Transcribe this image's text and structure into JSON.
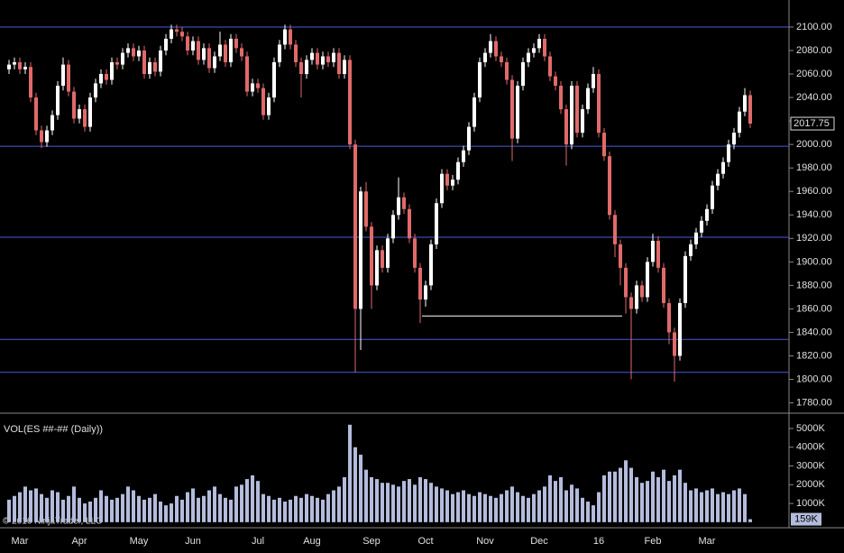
{
  "footer": "© 2016 NinjaTrader, LLC",
  "chart_data": [
    {
      "type": "candlestick",
      "categories": [
        null,
        null,
        "Mar",
        null,
        null,
        null,
        null,
        null,
        null,
        null,
        null,
        null,
        null,
        "Apr",
        null,
        null,
        null,
        null,
        null,
        null,
        null,
        null,
        null,
        null,
        "May",
        null,
        null,
        null,
        null,
        null,
        null,
        null,
        null,
        null,
        "Jun",
        null,
        null,
        null,
        null,
        null,
        null,
        null,
        null,
        null,
        null,
        null,
        "Jul",
        null,
        null,
        null,
        null,
        null,
        null,
        null,
        null,
        null,
        "Aug",
        null,
        null,
        null,
        null,
        null,
        null,
        null,
        null,
        null,
        null,
        "Sep",
        null,
        null,
        null,
        null,
        null,
        null,
        null,
        null,
        null,
        "Oct",
        null,
        null,
        null,
        null,
        null,
        null,
        null,
        null,
        null,
        null,
        "Nov",
        null,
        null,
        null,
        null,
        null,
        null,
        null,
        null,
        null,
        "Dec",
        null,
        null,
        null,
        null,
        null,
        null,
        null,
        null,
        null,
        null,
        "16",
        null,
        null,
        null,
        null,
        null,
        null,
        null,
        null,
        null,
        "Feb",
        null,
        null,
        null,
        null,
        null,
        null,
        null,
        null,
        null,
        "Mar",
        null,
        null,
        null,
        null,
        null,
        null,
        null,
        null
      ],
      "open": [
        2064,
        2068,
        2070,
        2064,
        2066,
        2040,
        2012,
        2002,
        2012,
        2025,
        2050,
        2068,
        2045,
        2022,
        2030,
        2015,
        2040,
        2052,
        2060,
        2055,
        2070,
        2068,
        2078,
        2082,
        2075,
        2080,
        2060,
        2070,
        2062,
        2080,
        2090,
        2098,
        2096,
        2092,
        2080,
        2088,
        2072,
        2082,
        2065,
        2075,
        2085,
        2070,
        2090,
        2082,
        2075,
        2045,
        2052,
        2048,
        2025,
        2040,
        2070,
        2085,
        2098,
        2085,
        2070,
        2060,
        2072,
        2078,
        2068,
        2075,
        2070,
        2078,
        2060,
        2072,
        2000,
        1860,
        1960,
        1930,
        1880,
        1910,
        1895,
        1920,
        1940,
        1955,
        1945,
        1920,
        1895,
        1868,
        1880,
        1915,
        1950,
        1975,
        1965,
        1970,
        1985,
        1995,
        2015,
        2040,
        2070,
        2078,
        2088,
        2075,
        2070,
        2055,
        2005,
        2050,
        2070,
        2078,
        2082,
        2090,
        2075,
        2058,
        2050,
        2030,
        2000,
        2050,
        2010,
        2030,
        2048,
        2060,
        2010,
        1990,
        1940,
        1915,
        1895,
        1870,
        1860,
        1880,
        1870,
        1900,
        1918,
        1895,
        1865,
        1840,
        1820,
        1865,
        1905,
        1915,
        1925,
        1935,
        1945,
        1965,
        1975,
        1985,
        2000,
        2010,
        2028,
        2042
      ],
      "high": [
        2072,
        2074,
        2074,
        2070,
        2070,
        2044,
        2016,
        2016,
        2029,
        2054,
        2074,
        2072,
        2049,
        2034,
        2034,
        2044,
        2056,
        2064,
        2064,
        2074,
        2074,
        2082,
        2086,
        2086,
        2084,
        2084,
        2074,
        2074,
        2084,
        2094,
        2102,
        2102,
        2100,
        2096,
        2092,
        2092,
        2086,
        2086,
        2079,
        2096,
        2089,
        2094,
        2094,
        2086,
        2079,
        2056,
        2056,
        2052,
        2044,
        2074,
        2089,
        2102,
        2102,
        2089,
        2074,
        2076,
        2082,
        2082,
        2079,
        2079,
        2082,
        2082,
        2076,
        2076,
        2004,
        1964,
        1968,
        1934,
        1914,
        1914,
        1924,
        1944,
        1972,
        1959,
        1949,
        1924,
        1899,
        1884,
        1919,
        1954,
        1979,
        1979,
        1974,
        1989,
        1999,
        2019,
        2044,
        2074,
        2082,
        2094,
        2092,
        2079,
        2074,
        2059,
        2054,
        2074,
        2082,
        2086,
        2094,
        2094,
        2079,
        2062,
        2054,
        2034,
        2054,
        2054,
        2034,
        2052,
        2066,
        2064,
        2014,
        1994,
        1944,
        1919,
        1899,
        1874,
        1884,
        1884,
        1904,
        1924,
        1922,
        1899,
        1869,
        1844,
        1869,
        1909,
        1919,
        1929,
        1939,
        1949,
        1969,
        1979,
        1989,
        2004,
        2014,
        2032,
        2048,
        2046
      ],
      "low": [
        2060,
        2064,
        2060,
        2060,
        2036,
        2008,
        1997,
        1998,
        2008,
        2021,
        2046,
        2041,
        2018,
        2018,
        2011,
        2011,
        2036,
        2048,
        2051,
        2051,
        2064,
        2064,
        2074,
        2071,
        2071,
        2056,
        2056,
        2058,
        2058,
        2076,
        2086,
        2092,
        2088,
        2076,
        2076,
        2068,
        2068,
        2061,
        2061,
        2071,
        2066,
        2066,
        2078,
        2071,
        2041,
        2041,
        2044,
        2021,
        2021,
        2036,
        2066,
        2081,
        2081,
        2066,
        2040,
        2056,
        2068,
        2064,
        2064,
        2066,
        2066,
        2056,
        2056,
        1996,
        1806,
        1825,
        1926,
        1860,
        1876,
        1891,
        1891,
        1916,
        1936,
        1941,
        1916,
        1891,
        1848,
        1862,
        1876,
        1911,
        1946,
        1961,
        1961,
        1966,
        1981,
        1991,
        2011,
        2036,
        2066,
        2074,
        2071,
        2066,
        2051,
        1986,
        2001,
        2046,
        2066,
        2074,
        2078,
        2071,
        2054,
        2046,
        2026,
        1982,
        1996,
        2006,
        2006,
        2026,
        2044,
        2006,
        1986,
        1936,
        1904,
        1880,
        1856,
        1800,
        1856,
        1866,
        1866,
        1896,
        1891,
        1861,
        1830,
        1798,
        1816,
        1861,
        1901,
        1911,
        1921,
        1931,
        1941,
        1961,
        1971,
        1981,
        1996,
        2006,
        2024,
        2014
      ],
      "close": [
        2068,
        2070,
        2064,
        2066,
        2040,
        2012,
        2002,
        2012,
        2025,
        2050,
        2068,
        2045,
        2022,
        2030,
        2015,
        2040,
        2052,
        2060,
        2055,
        2070,
        2068,
        2078,
        2082,
        2075,
        2080,
        2060,
        2070,
        2062,
        2080,
        2090,
        2098,
        2096,
        2092,
        2080,
        2088,
        2072,
        2082,
        2065,
        2075,
        2085,
        2070,
        2090,
        2082,
        2075,
        2045,
        2052,
        2048,
        2025,
        2040,
        2070,
        2085,
        2098,
        2085,
        2070,
        2060,
        2072,
        2078,
        2068,
        2075,
        2070,
        2078,
        2060,
        2072,
        2000,
        1860,
        1960,
        1930,
        1880,
        1910,
        1895,
        1920,
        1940,
        1955,
        1945,
        1920,
        1895,
        1868,
        1880,
        1915,
        1950,
        1975,
        1965,
        1970,
        1985,
        1995,
        2015,
        2040,
        2070,
        2078,
        2088,
        2075,
        2070,
        2055,
        2005,
        2050,
        2070,
        2078,
        2082,
        2090,
        2075,
        2058,
        2050,
        2030,
        2000,
        2050,
        2010,
        2030,
        2048,
        2060,
        2010,
        1990,
        1940,
        1915,
        1895,
        1870,
        1860,
        1880,
        1870,
        1900,
        1918,
        1895,
        1865,
        1840,
        1820,
        1865,
        1905,
        1915,
        1925,
        1935,
        1945,
        1965,
        1975,
        1985,
        2000,
        2010,
        2028,
        2042,
        2017.75
      ],
      "up_color": "#ffffff",
      "down_color": "#e06a6a",
      "ylim": [
        1772,
        2123
      ],
      "yticks": [
        {
          "value": 1780,
          "label": "1780.00"
        },
        {
          "value": 1800,
          "label": "1800.00"
        },
        {
          "value": 1820,
          "label": "1820.00"
        },
        {
          "value": 1840,
          "label": "1840.00"
        },
        {
          "value": 1860,
          "label": "1860.00"
        },
        {
          "value": 1880,
          "label": "1880.00"
        },
        {
          "value": 1900,
          "label": "1900.00"
        },
        {
          "value": 1920,
          "label": "1920.00"
        },
        {
          "value": 1940,
          "label": "1940.00"
        },
        {
          "value": 1960,
          "label": "1960.00"
        },
        {
          "value": 1980,
          "label": "1980.00"
        },
        {
          "value": 2000,
          "label": "2000.00"
        },
        {
          "value": 2020,
          "label": "2020.00"
        },
        {
          "value": 2040,
          "label": "2040.00"
        },
        {
          "value": 2060,
          "label": "2060.00"
        },
        {
          "value": 2080,
          "label": "2080.00"
        },
        {
          "value": 2100,
          "label": "2100.00"
        }
      ],
      "levels": [
        2100,
        1998.5,
        1921,
        1834,
        1806
      ],
      "level_color": "#4a5bd6",
      "drawn_line": {
        "value": 1854,
        "color": "#ffffff"
      },
      "last_value": 2017.75
    },
    {
      "type": "bar",
      "title": "VOL(ES ##-## (Daily))",
      "values": [
        1200,
        1400,
        1600,
        1900,
        1700,
        1800,
        1500,
        1300,
        1700,
        1600,
        1200,
        1400,
        1900,
        1300,
        1000,
        1100,
        1300,
        1700,
        1400,
        1200,
        1300,
        1500,
        1900,
        1700,
        1400,
        1200,
        1300,
        1500,
        1100,
        900,
        1000,
        1400,
        1200,
        1600,
        1800,
        1300,
        1400,
        1700,
        1900,
        1500,
        1300,
        1200,
        1900,
        2000,
        2300,
        2500,
        2200,
        1500,
        1400,
        1200,
        1300,
        1100,
        1200,
        1400,
        1300,
        1500,
        1400,
        1300,
        1200,
        1500,
        1700,
        1900,
        2400,
        5200,
        4000,
        3600,
        2800,
        2400,
        2300,
        2100,
        2100,
        2000,
        1900,
        2200,
        2300,
        2000,
        2400,
        2300,
        2100,
        1900,
        1800,
        1700,
        1500,
        1600,
        1700,
        1500,
        1400,
        1600,
        1500,
        1400,
        1300,
        1500,
        1700,
        1900,
        1600,
        1400,
        1300,
        1500,
        1700,
        1900,
        2500,
        2200,
        2400,
        1700,
        2000,
        1800,
        1300,
        1100,
        900,
        1600,
        2500,
        2700,
        2700,
        2900,
        3300,
        2900,
        2400,
        2100,
        2200,
        2700,
        2400,
        2800,
        2200,
        2500,
        2800,
        2100,
        1700,
        1800,
        1600,
        1700,
        1800,
        1500,
        1600,
        1500,
        1700,
        1800,
        1500,
        159
      ],
      "color": "#b4bcdc",
      "ylim": [
        -200,
        5720
      ],
      "yticks": [
        {
          "value": 1000,
          "label": "1000K"
        },
        {
          "value": 2000,
          "label": "2000K"
        },
        {
          "value": 3000,
          "label": "3000K"
        },
        {
          "value": 4000,
          "label": "4000K"
        },
        {
          "value": 5000,
          "label": "5000K"
        }
      ],
      "last_value": {
        "value": 159,
        "label": "159K"
      }
    }
  ]
}
